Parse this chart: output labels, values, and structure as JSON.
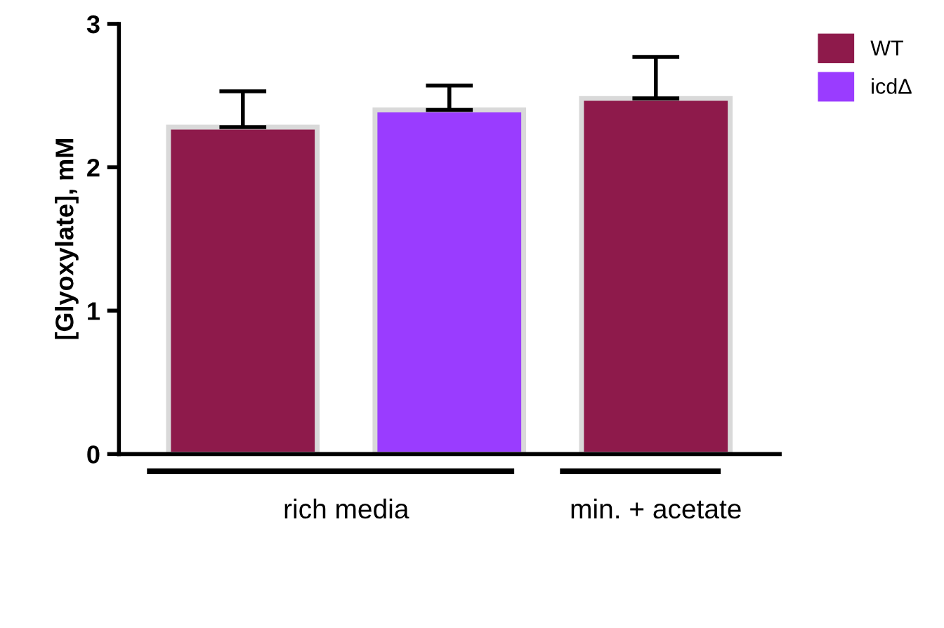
{
  "chart_data": {
    "type": "bar",
    "ylabel": "[Glyoxylate], mM",
    "categories": [
      null,
      null,
      null
    ],
    "series": [
      {
        "name": "WT",
        "color": "#8e1a4b",
        "values": [
          2.28,
          null,
          2.48
        ],
        "errors": [
          [
            2.28,
            2.53
          ],
          null,
          [
            2.48,
            2.77
          ]
        ]
      },
      {
        "name": "icdΔ",
        "color": "#9a3cff",
        "values": [
          null,
          2.4,
          null
        ],
        "errors": [
          null,
          [
            2.4,
            2.57
          ],
          null
        ]
      }
    ],
    "ylim": [
      0,
      3
    ],
    "yticks": [
      0,
      1,
      2,
      3
    ],
    "grid": false,
    "legend": "top right",
    "annotations": [
      "rich media",
      "min. + acetate"
    ]
  }
}
